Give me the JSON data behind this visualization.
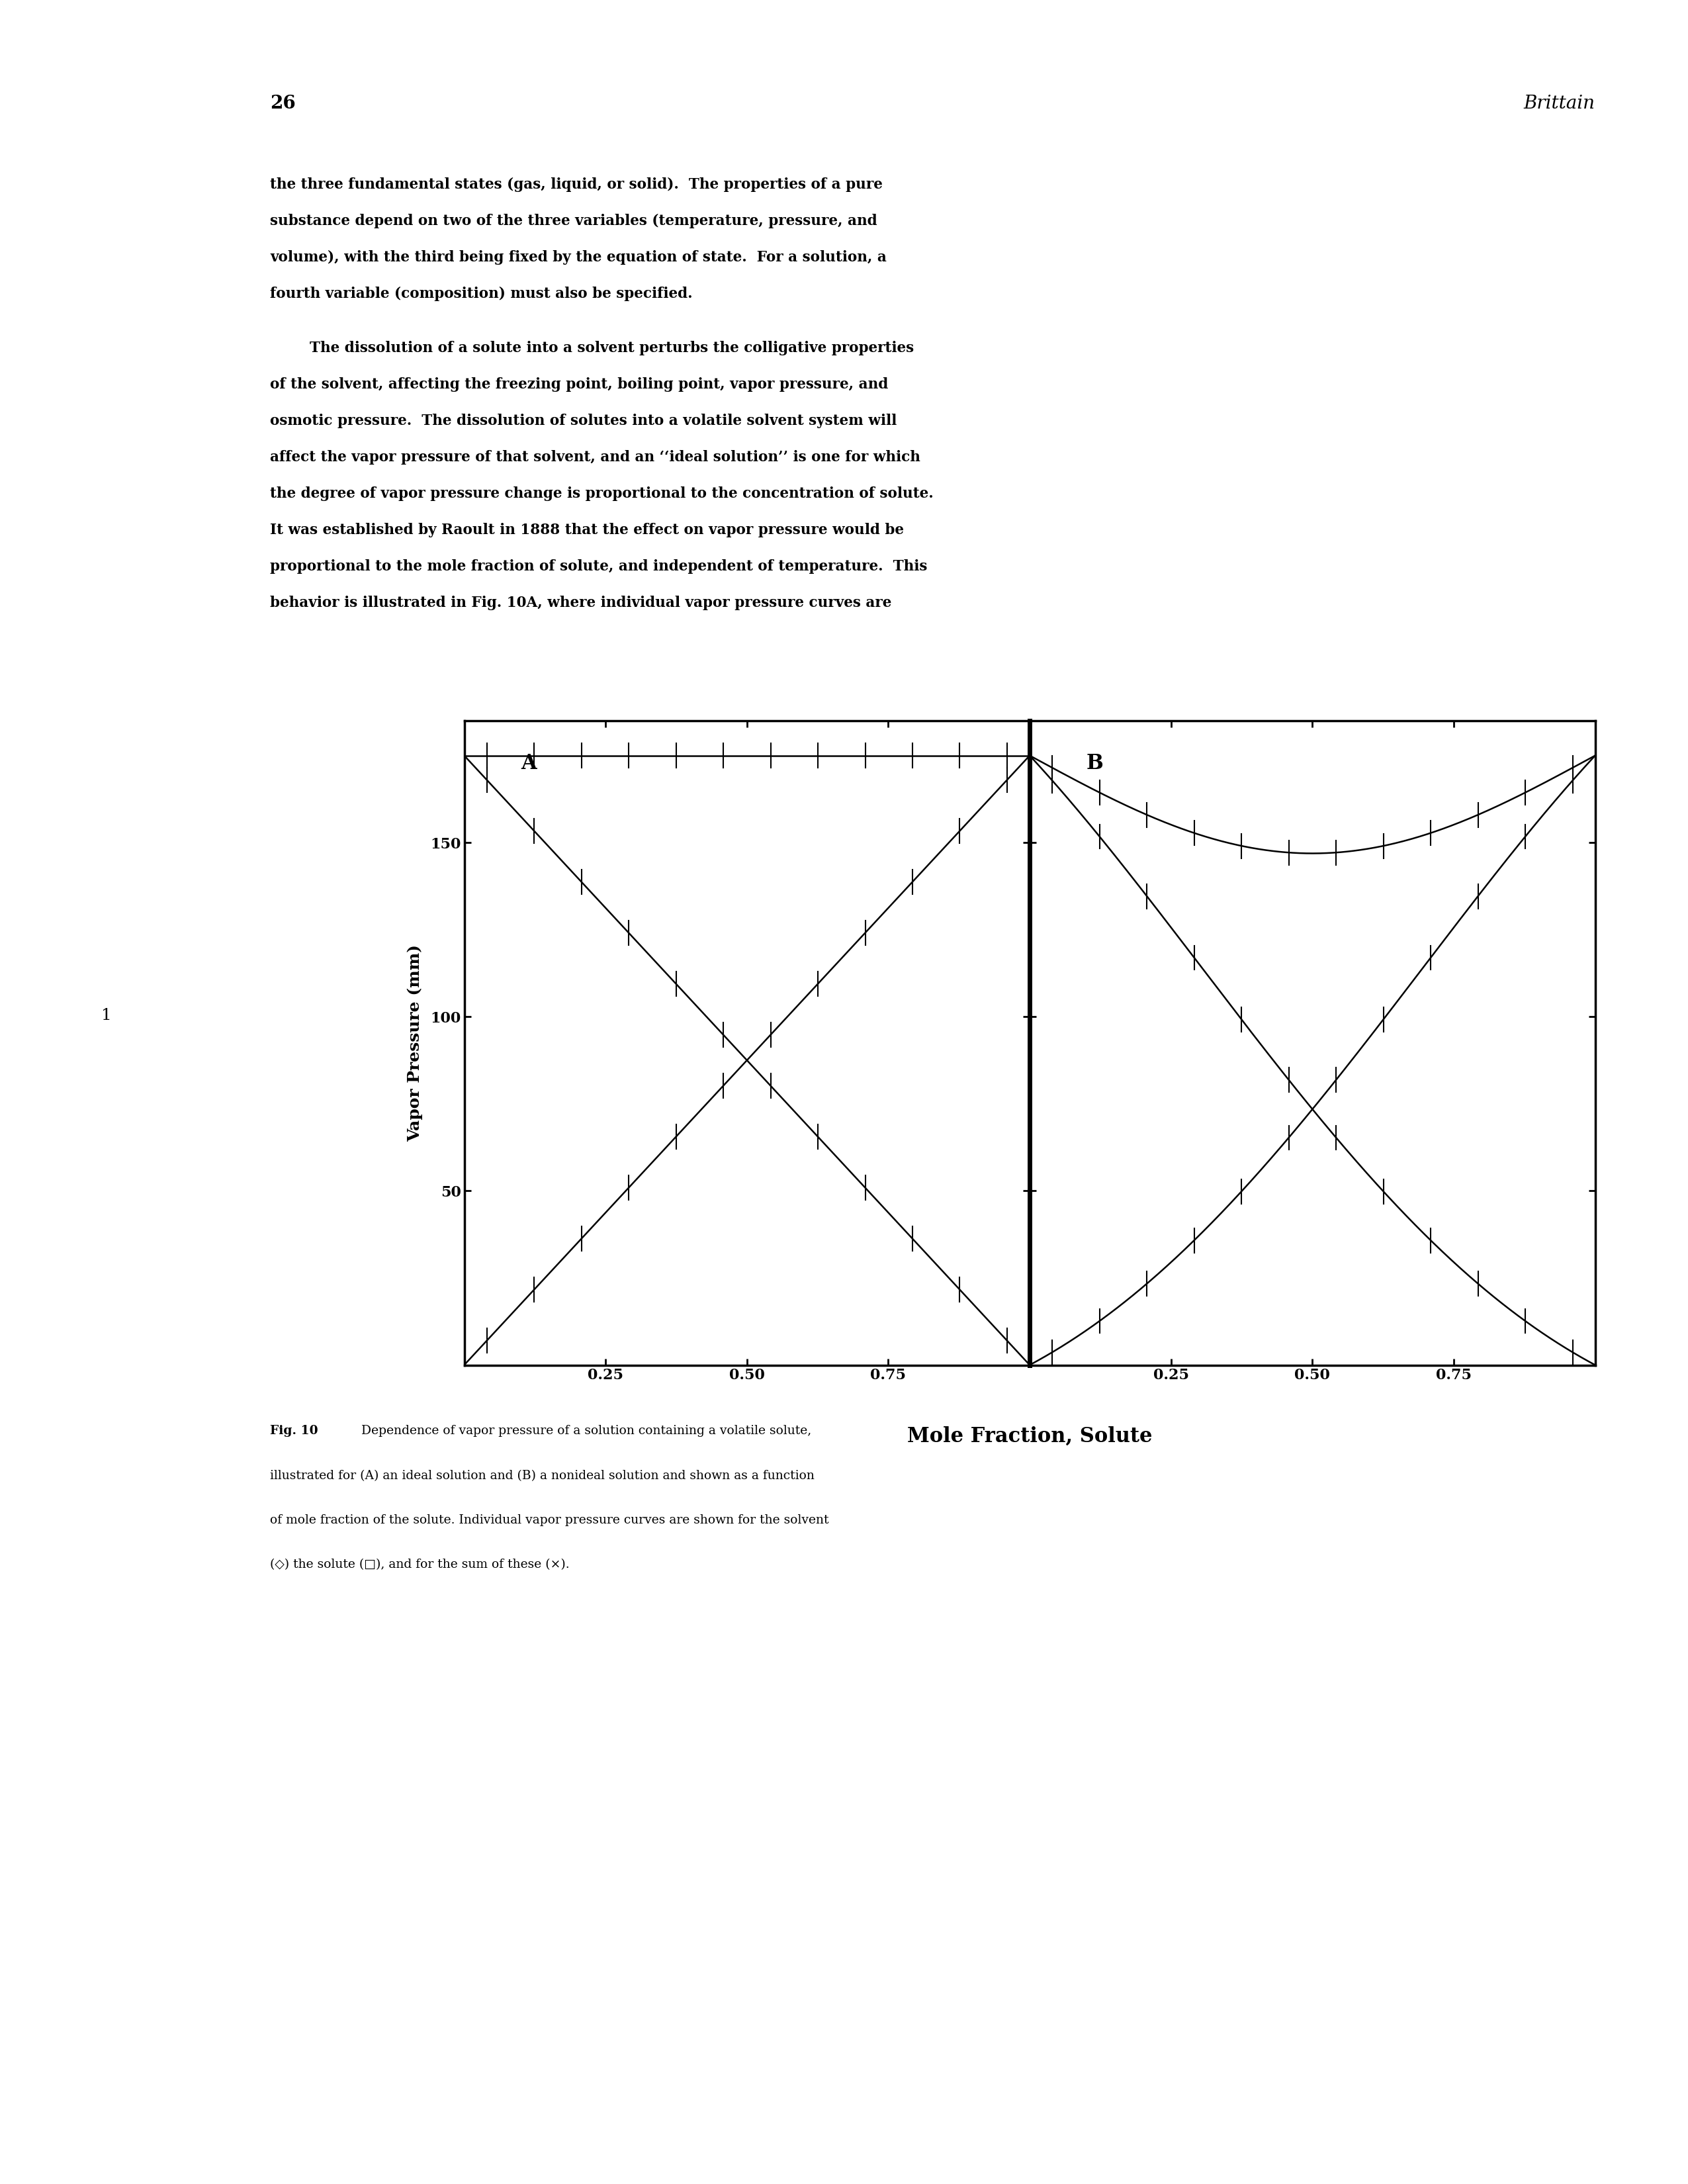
{
  "title_text": "Mole Fraction, Solute",
  "ylabel": "Vapor Pressure (mm)",
  "yticks": [
    50,
    100,
    150
  ],
  "ylim": [
    0,
    185
  ],
  "xlim": [
    0,
    1.0
  ],
  "xticks": [
    0.25,
    0.5,
    0.75
  ],
  "label_A": "A",
  "label_B": "B",
  "P0": 175,
  "B_param": 0.7,
  "background_color": "#ffffff",
  "line_color": "#000000",
  "page_number": "26",
  "header_right": "Brittain",
  "n_markers": 12,
  "body_para1": "the three fundamental states (gas, liquid, or solid). The properties of a pure substance depend on two of the three variables (temperature, pressure, and volume), with the third being fixed by the equation of state. For a solution, a fourth variable (composition) must also be specified.",
  "body_para2_indent": "        The dissolution of a solute into a solvent perturbs the colligative properties of the solvent, affecting the freezing point, boiling point, vapor pressure, and osmotic pressure. The dissolution of solutes into a volatile solvent system will affect the vapor pressure of that solvent, and an ideal solution is one for which the degree of vapor pressure change is proportional to the concentration of solute. It was established by Raoult in 1888 that the effect on vapor pressure would be proportional to the mole fraction of solute, and independent of temperature. This behavior is illustrated in Fig. 10A, where individual vapor pressure curves are",
  "fig_num": "Fig. 10",
  "fig_caption_rest": "  Dependence of vapor pressure of a solution containing a volatile solute, illustrated for (A) an ideal solution and (B) a nonideal solution and shown as a function of mole fraction of the solute. Individual vapor pressure curves are shown for the solvent (◇) the solute (□), and for the sum of these (×)."
}
